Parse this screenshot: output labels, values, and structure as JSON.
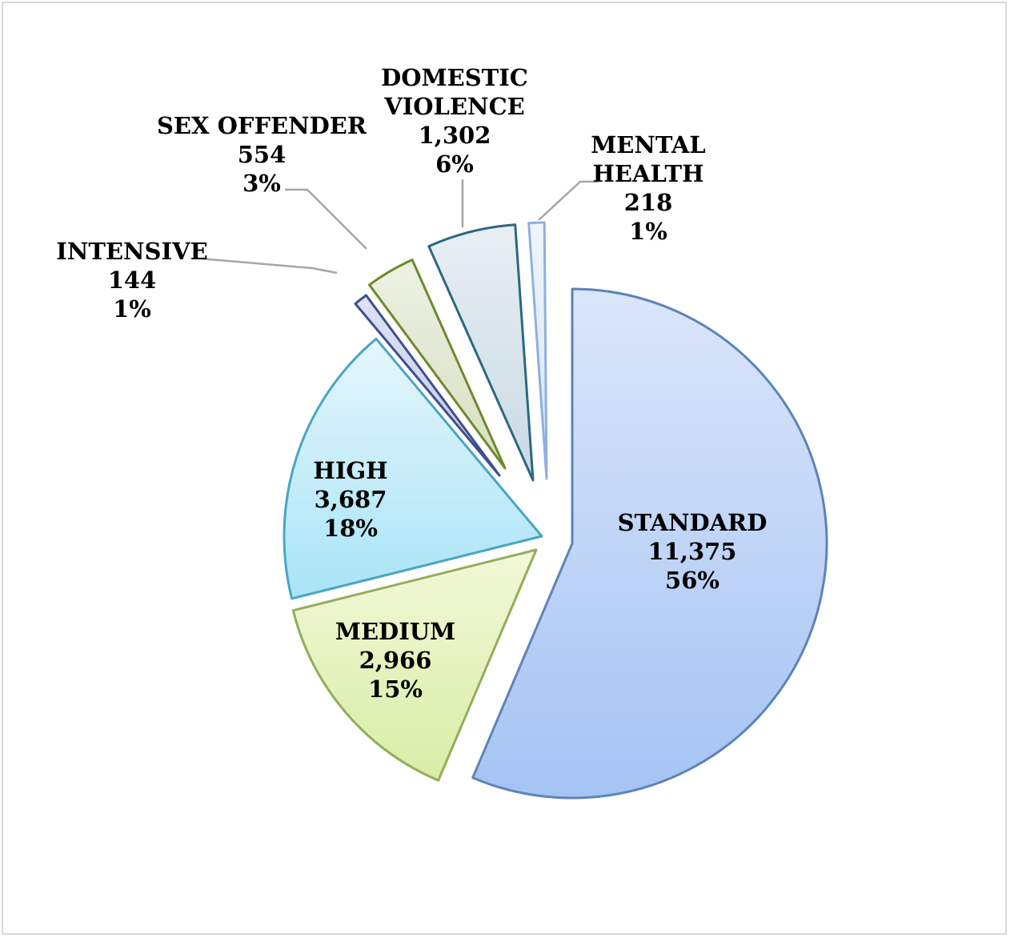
{
  "chart_data": {
    "type": "pie",
    "title": "",
    "slices": [
      {
        "lines": [
          "STANDARD"
        ],
        "value": "11,375",
        "percent": "56%",
        "n": 11375,
        "fill_top": "#dbe6fa",
        "fill_bottom": "#a5c3f3",
        "stroke": "#5d84b8"
      },
      {
        "lines": [
          "MEDIUM"
        ],
        "value": "2,966",
        "percent": "15%",
        "n": 2966,
        "fill_top": "#f2f8d8",
        "fill_bottom": "#d9eda6",
        "stroke": "#93ad5a"
      },
      {
        "lines": [
          "HIGH"
        ],
        "value": "3,687",
        "percent": "18%",
        "n": 3687,
        "fill_top": "#e6f6fc",
        "fill_bottom": "#a8e4f6",
        "stroke": "#4aa5c4"
      },
      {
        "lines": [
          "INTENSIVE"
        ],
        "value": "144",
        "percent": "1%",
        "n": 144,
        "fill_top": "#dde2f2",
        "fill_bottom": "#c3cbe6",
        "stroke": "#3e4f8c"
      },
      {
        "lines": [
          "SEX OFFENDER"
        ],
        "value": "554",
        "percent": "3%",
        "n": 554,
        "fill_top": "#eef1e3",
        "fill_bottom": "#d6dfc1",
        "stroke": "#6d8a2c"
      },
      {
        "lines": [
          "DOMESTIC",
          "VIOLENCE"
        ],
        "value": "1,302",
        "percent": "6%",
        "n": 1302,
        "fill_top": "#e8eff3",
        "fill_bottom": "#c8d9e3",
        "stroke": "#2c6782"
      },
      {
        "lines": [
          "MENTAL",
          "HEALTH"
        ],
        "value": "218",
        "percent": "1%",
        "n": 218,
        "fill_top": "#f0f5fd",
        "fill_bottom": "#d6e4f8",
        "stroke": "#8fb0df"
      }
    ],
    "legend": "none",
    "label_style": "category, value and percent on or beside each slice"
  }
}
